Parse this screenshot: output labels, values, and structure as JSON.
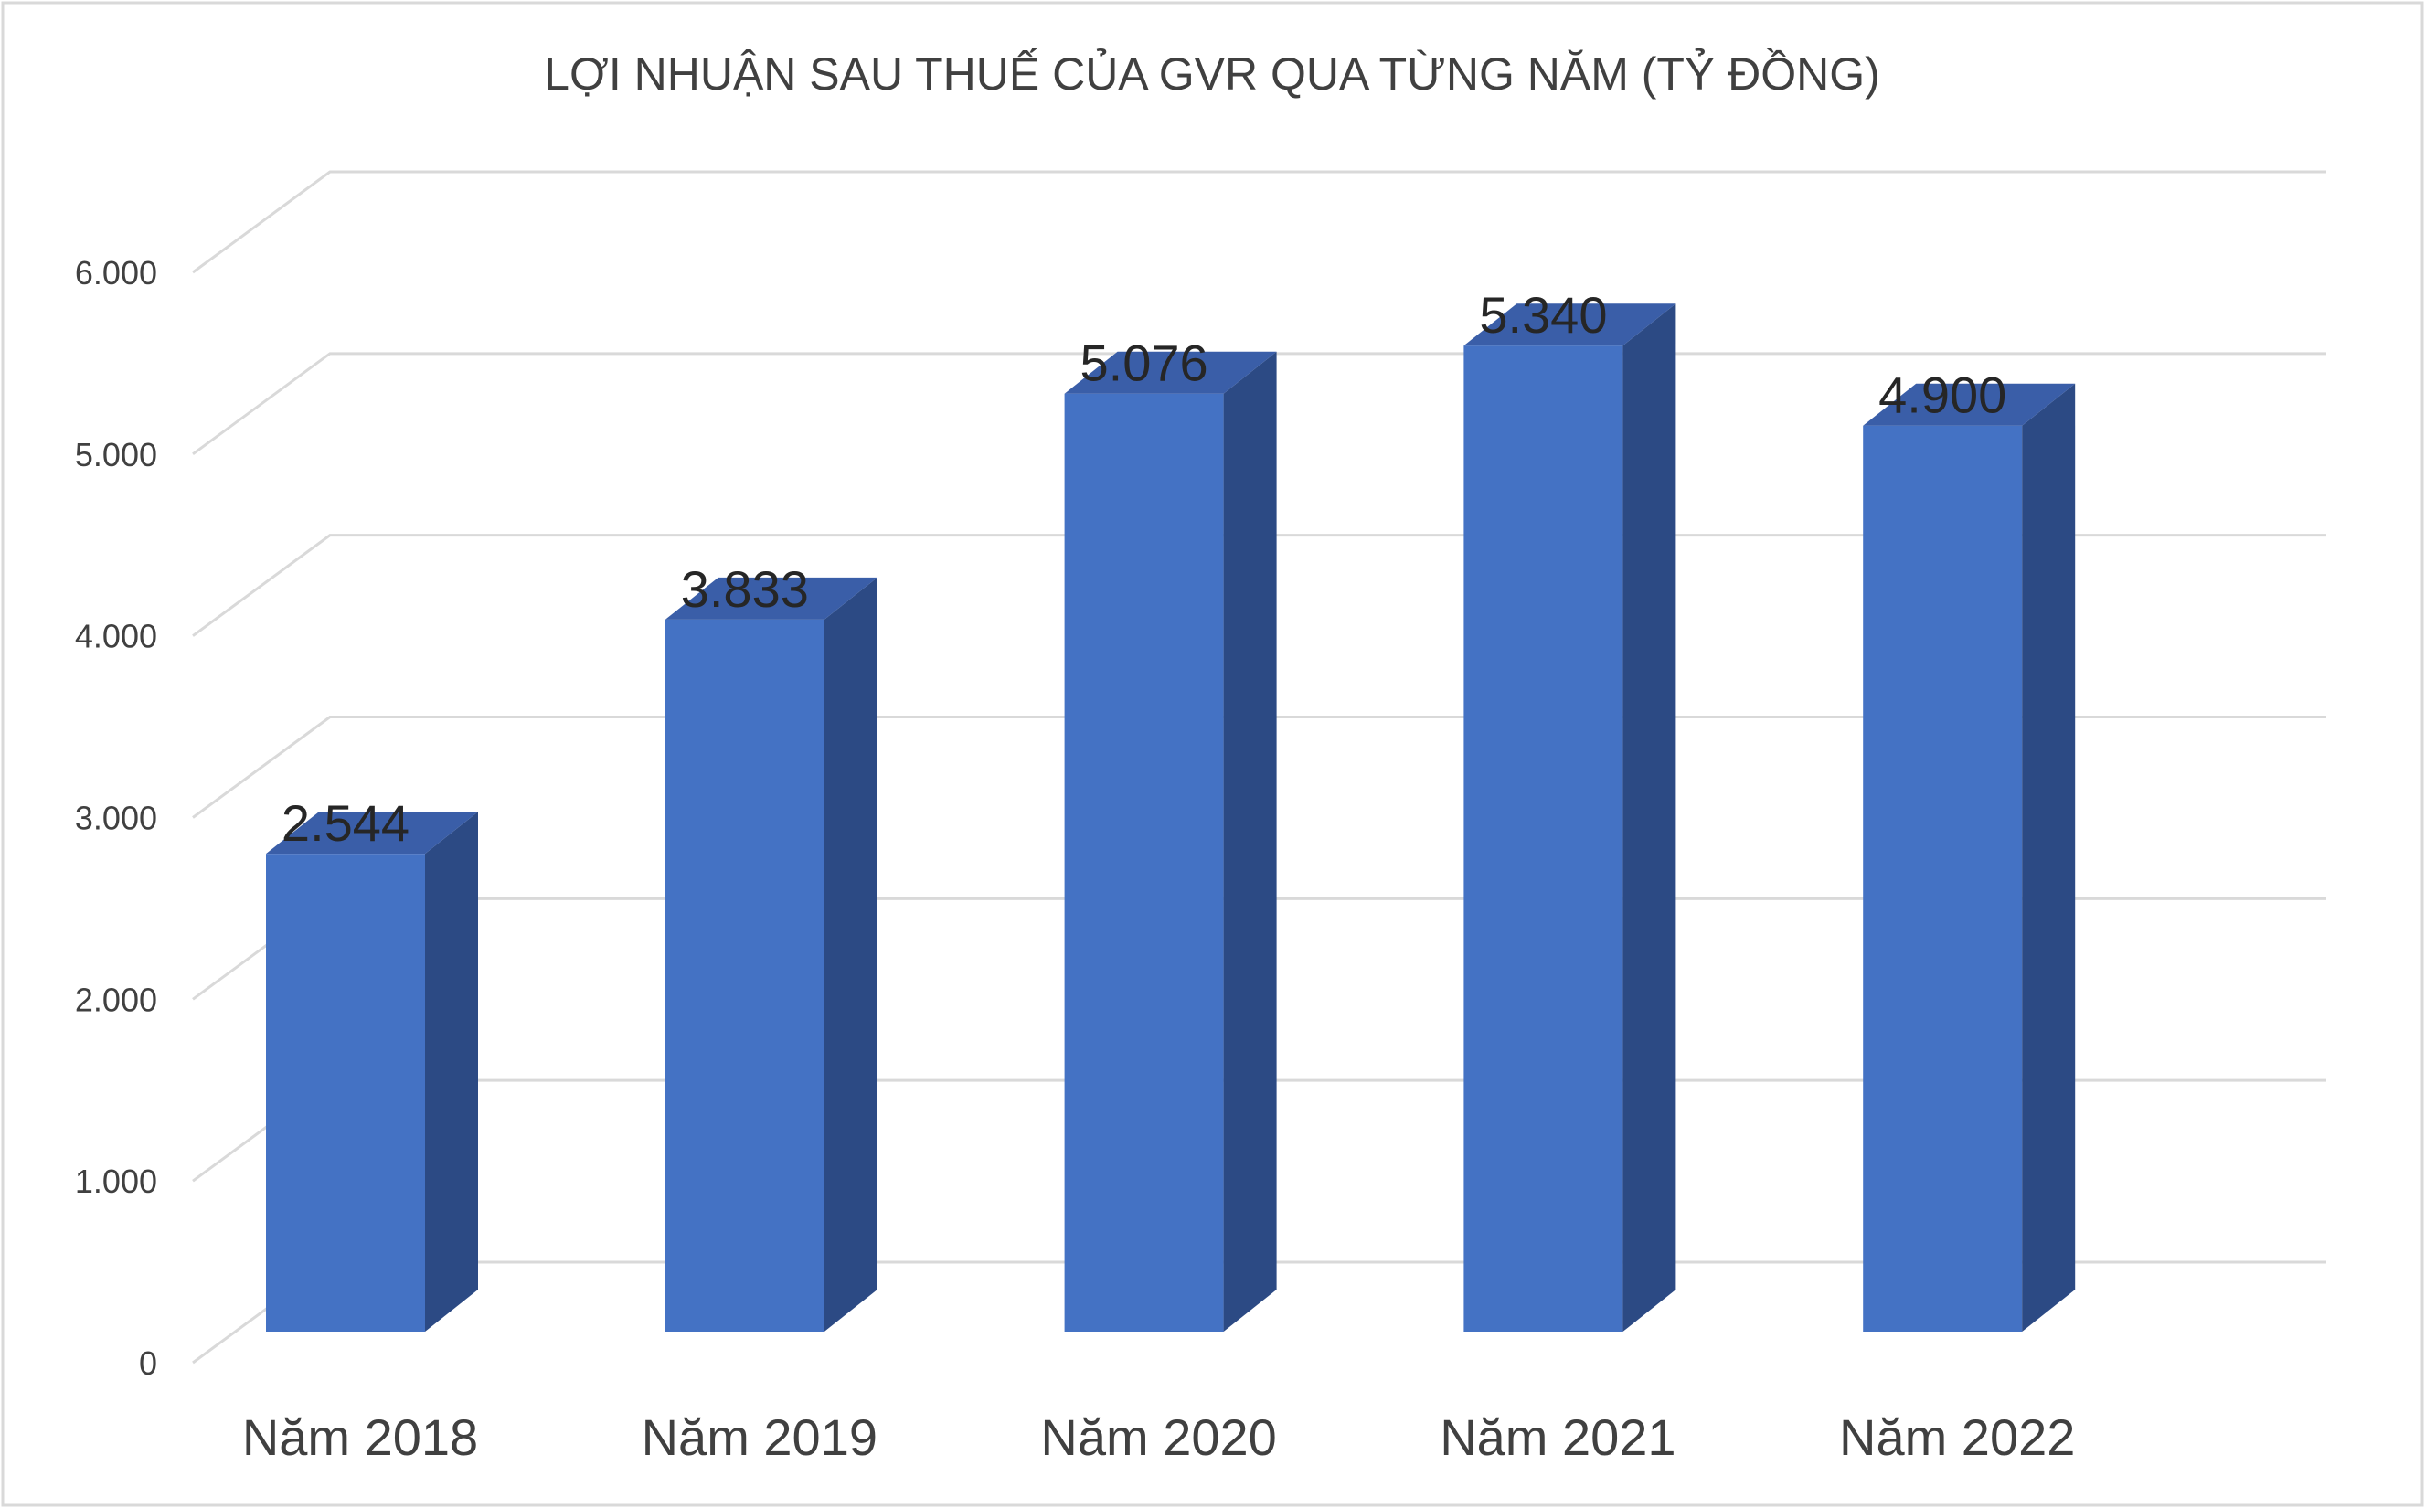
{
  "chart_data": {
    "type": "bar",
    "title": "LỢI NHUẬN SAU THUẾ CỦA GVR QUA TỪNG NĂM (TỶ ĐỒNG)",
    "categories": [
      "Năm 2018",
      "Năm 2019",
      "Năm 2020",
      "Năm 2021",
      "Năm 2022"
    ],
    "values": [
      2544,
      3833,
      5076,
      5340,
      4900
    ],
    "data_labels": [
      "2.544",
      "3.833",
      "5.076",
      "5.340",
      "4.900"
    ],
    "ylim": [
      0,
      6000
    ],
    "yticks": [
      0,
      1000,
      2000,
      3000,
      4000,
      5000,
      6000
    ],
    "ytick_labels": [
      "0",
      "1.000",
      "2.000",
      "3.000",
      "4.000",
      "5.000",
      "6.000"
    ],
    "grid": true,
    "style": "3d-column",
    "colors": {
      "front": "#4472c4",
      "side": "#2c4a84",
      "top": "#3a5ea8",
      "grid": "#d9d9d9",
      "border": "#d9d9d9"
    }
  }
}
